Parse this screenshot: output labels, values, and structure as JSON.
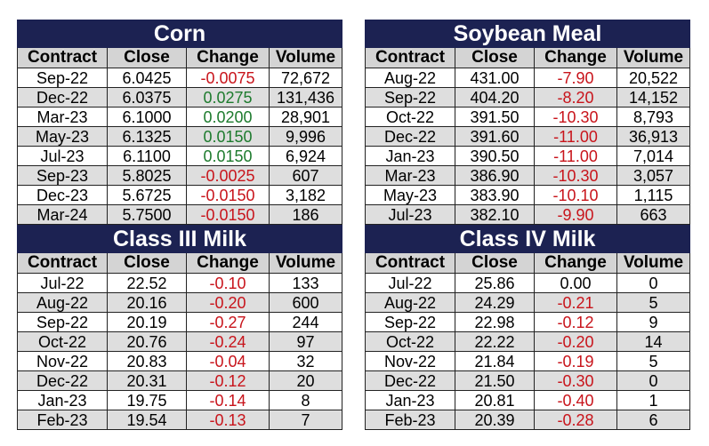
{
  "panels": [
    {
      "title": "Corn",
      "headers": [
        "Contract",
        "Close",
        "Change",
        "Volume"
      ],
      "rows": [
        [
          "Sep-22",
          "6.0425",
          "-0.0075",
          "72,672"
        ],
        [
          "Dec-22",
          "6.0375",
          "0.0275",
          "131,436"
        ],
        [
          "Mar-23",
          "6.1000",
          "0.0200",
          "28,901"
        ],
        [
          "May-23",
          "6.1325",
          "0.0150",
          "9,996"
        ],
        [
          "Jul-23",
          "6.1100",
          "0.0150",
          "6,924"
        ],
        [
          "Sep-23",
          "5.8025",
          "-0.0025",
          "607"
        ],
        [
          "Dec-23",
          "5.6725",
          "-0.0150",
          "3,182"
        ],
        [
          "Mar-24",
          "5.7500",
          "-0.0150",
          "186"
        ]
      ]
    },
    {
      "title": "Soybean Meal",
      "headers": [
        "Contract",
        "Close",
        "Change",
        "Volume"
      ],
      "rows": [
        [
          "Aug-22",
          "431.00",
          "-7.90",
          "20,522"
        ],
        [
          "Sep-22",
          "404.20",
          "-8.20",
          "14,152"
        ],
        [
          "Oct-22",
          "391.50",
          "-10.30",
          "8,793"
        ],
        [
          "Dec-22",
          "391.60",
          "-11.00",
          "36,913"
        ],
        [
          "Jan-23",
          "390.50",
          "-11.00",
          "7,014"
        ],
        [
          "Mar-23",
          "386.90",
          "-10.30",
          "3,057"
        ],
        [
          "May-23",
          "383.90",
          "-10.10",
          "1,115"
        ],
        [
          "Jul-23",
          "382.10",
          "-9.90",
          "663"
        ]
      ]
    },
    {
      "title": "Class III Milk",
      "headers": [
        "Contract",
        "Close",
        "Change",
        "Volume"
      ],
      "rows": [
        [
          "Jul-22",
          "22.52",
          "-0.10",
          "133"
        ],
        [
          "Aug-22",
          "20.16",
          "-0.20",
          "600"
        ],
        [
          "Sep-22",
          "20.19",
          "-0.27",
          "244"
        ],
        [
          "Oct-22",
          "20.76",
          "-0.24",
          "97"
        ],
        [
          "Nov-22",
          "20.83",
          "-0.04",
          "32"
        ],
        [
          "Dec-22",
          "20.31",
          "-0.12",
          "20"
        ],
        [
          "Jan-23",
          "19.75",
          "-0.14",
          "8"
        ],
        [
          "Feb-23",
          "19.54",
          "-0.13",
          "7"
        ]
      ]
    },
    {
      "title": "Class IV Milk",
      "headers": [
        "Contract",
        "Close",
        "Change",
        "Volume"
      ],
      "rows": [
        [
          "Jul-22",
          "25.86",
          "0.00",
          "0"
        ],
        [
          "Aug-22",
          "24.29",
          "-0.21",
          "5"
        ],
        [
          "Sep-22",
          "22.98",
          "-0.12",
          "9"
        ],
        [
          "Oct-22",
          "22.22",
          "-0.20",
          "14"
        ],
        [
          "Nov-22",
          "21.84",
          "-0.19",
          "5"
        ],
        [
          "Dec-22",
          "21.50",
          "-0.30",
          "0"
        ],
        [
          "Jan-23",
          "20.81",
          "-0.40",
          "1"
        ],
        [
          "Feb-23",
          "20.39",
          "-0.28",
          "6"
        ]
      ]
    }
  ],
  "colors": {
    "title_bg": "#1c2252",
    "negative": "#c8141b",
    "positive": "#1e7b2e",
    "stripe": "#dedede",
    "header_bg": "#d4d4d4"
  }
}
